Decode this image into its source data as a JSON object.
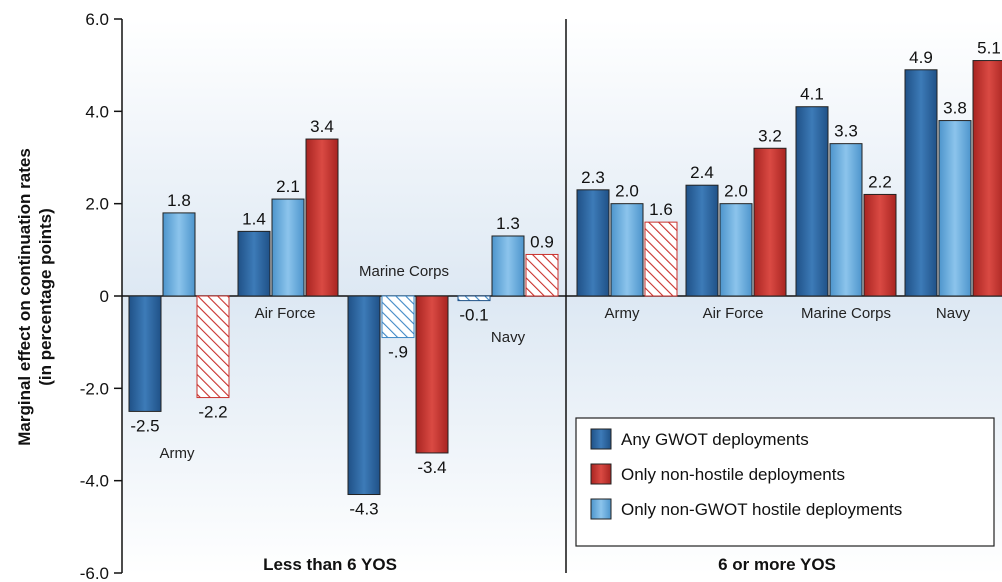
{
  "chart_data": {
    "type": "bar",
    "ylabel_lines": [
      "Marginal effect on continuation rates",
      "(in percentage points)"
    ],
    "ylim": [
      -6.0,
      6.0
    ],
    "yticks": [
      "6.0",
      "4.0",
      "2.0",
      "0",
      "-2.0",
      "-4.0",
      "-6.0"
    ],
    "grid": false,
    "legend_position": "bottom-right",
    "colors": {
      "any_gwot": "#2e6aa3",
      "non_hostile": "#c9312d",
      "non_gwot_hostile": "#6fb0e0",
      "hatched_blue": "#3f88c6",
      "hatched_red": "#c9312d"
    },
    "series": [
      {
        "name": "Any GWOT deployments"
      },
      {
        "name": "Only non-hostile deployments"
      },
      {
        "name": "Only non-GWOT hostile deployments"
      }
    ],
    "groups": [
      {
        "label": "Less than 6 YOS",
        "categories": [
          {
            "name": "Army",
            "bars": [
              {
                "series": 0,
                "value": -2.5,
                "label": "-2.5",
                "hatched": false
              },
              {
                "series": 2,
                "value": 1.8,
                "label": "1.8",
                "hatched": false
              },
              {
                "series": 1,
                "value": -2.2,
                "label": "-2.2",
                "hatched": true
              }
            ]
          },
          {
            "name": "Air Force",
            "bars": [
              {
                "series": 0,
                "value": 1.4,
                "label": "1.4",
                "hatched": false
              },
              {
                "series": 2,
                "value": 2.1,
                "label": "2.1",
                "hatched": false
              },
              {
                "series": 1,
                "value": 3.4,
                "label": "3.4",
                "hatched": false
              }
            ]
          },
          {
            "name": "Marine Corps",
            "bars": [
              {
                "series": 0,
                "value": -4.3,
                "label": "-4.3",
                "hatched": false
              },
              {
                "series": 2,
                "value": -0.9,
                "label": "-.9",
                "hatched": true
              },
              {
                "series": 1,
                "value": -3.4,
                "label": "-3.4",
                "hatched": false
              }
            ]
          },
          {
            "name": "Navy",
            "bars": [
              {
                "series": 0,
                "value": -0.1,
                "label": "-0.1",
                "hatched": true
              },
              {
                "series": 2,
                "value": 1.3,
                "label": "1.3",
                "hatched": false
              },
              {
                "series": 1,
                "value": 0.9,
                "label": "0.9",
                "hatched": true
              }
            ]
          }
        ]
      },
      {
        "label": "6 or more YOS",
        "categories": [
          {
            "name": "Army",
            "bars": [
              {
                "series": 0,
                "value": 2.3,
                "label": "2.3",
                "hatched": false
              },
              {
                "series": 2,
                "value": 2.0,
                "label": "2.0",
                "hatched": false
              },
              {
                "series": 1,
                "value": 1.6,
                "label": "1.6",
                "hatched": true
              }
            ]
          },
          {
            "name": "Air Force",
            "bars": [
              {
                "series": 0,
                "value": 2.4,
                "label": "2.4",
                "hatched": false
              },
              {
                "series": 2,
                "value": 2.0,
                "label": "2.0",
                "hatched": false
              },
              {
                "series": 1,
                "value": 3.2,
                "label": "3.2",
                "hatched": false
              }
            ]
          },
          {
            "name": "Marine Corps",
            "bars": [
              {
                "series": 0,
                "value": 4.1,
                "label": "4.1",
                "hatched": false
              },
              {
                "series": 2,
                "value": 3.3,
                "label": "3.3",
                "hatched": false
              },
              {
                "series": 1,
                "value": 2.2,
                "label": "2.2",
                "hatched": false
              }
            ]
          },
          {
            "name": "Navy",
            "bars": [
              {
                "series": 0,
                "value": 4.9,
                "label": "4.9",
                "hatched": false
              },
              {
                "series": 2,
                "value": 3.8,
                "label": "3.8",
                "hatched": false
              },
              {
                "series": 1,
                "value": 5.1,
                "label": "5.1",
                "hatched": false
              }
            ]
          }
        ]
      }
    ]
  }
}
